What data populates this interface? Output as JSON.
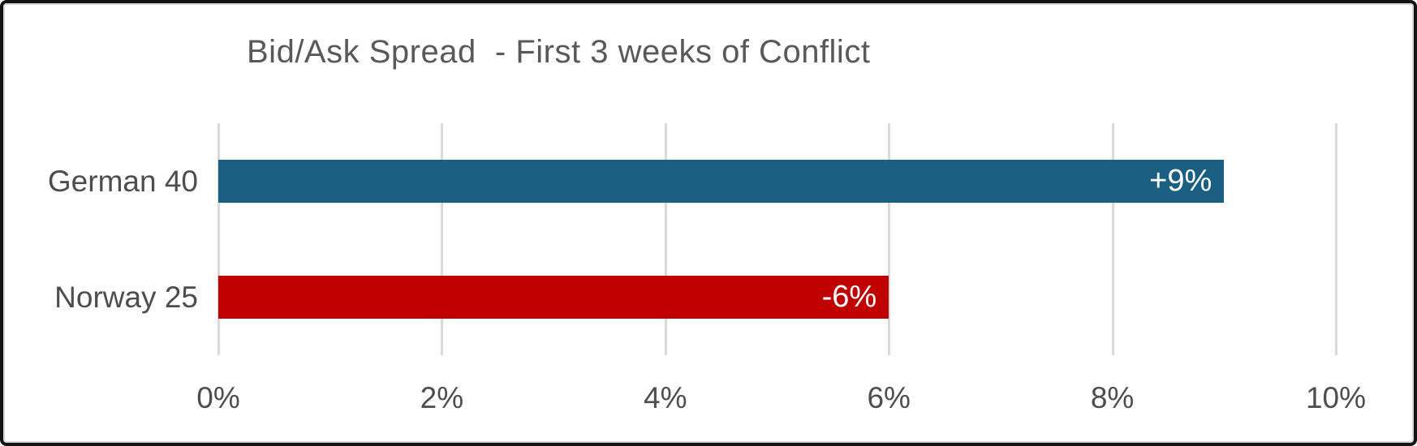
{
  "chart_data": {
    "type": "bar",
    "orientation": "horizontal",
    "title": "Bid/Ask Spread  - First 3 weeks of Conflict",
    "categories": [
      "German 40",
      "Norway 25"
    ],
    "values": [
      9,
      6
    ],
    "bar_labels": [
      "+9%",
      "-6%"
    ],
    "bar_colors": [
      "#1a5e82",
      "#c00000"
    ],
    "xlim": [
      0,
      10
    ],
    "x_ticks": [
      {
        "value": 0,
        "label": "0%"
      },
      {
        "value": 2,
        "label": "2%"
      },
      {
        "value": 4,
        "label": "4%"
      },
      {
        "value": 6,
        "label": "6%"
      },
      {
        "value": 8,
        "label": "8%"
      },
      {
        "value": 10,
        "label": "10%"
      }
    ],
    "grid": "vertical-only",
    "legend": "none",
    "gridline_color": "#d9d9d9",
    "title_color": "#595959",
    "axis_label_color": "#4d4d4d",
    "data_label_color": "#ffffff",
    "xlabel": "",
    "ylabel": ""
  }
}
